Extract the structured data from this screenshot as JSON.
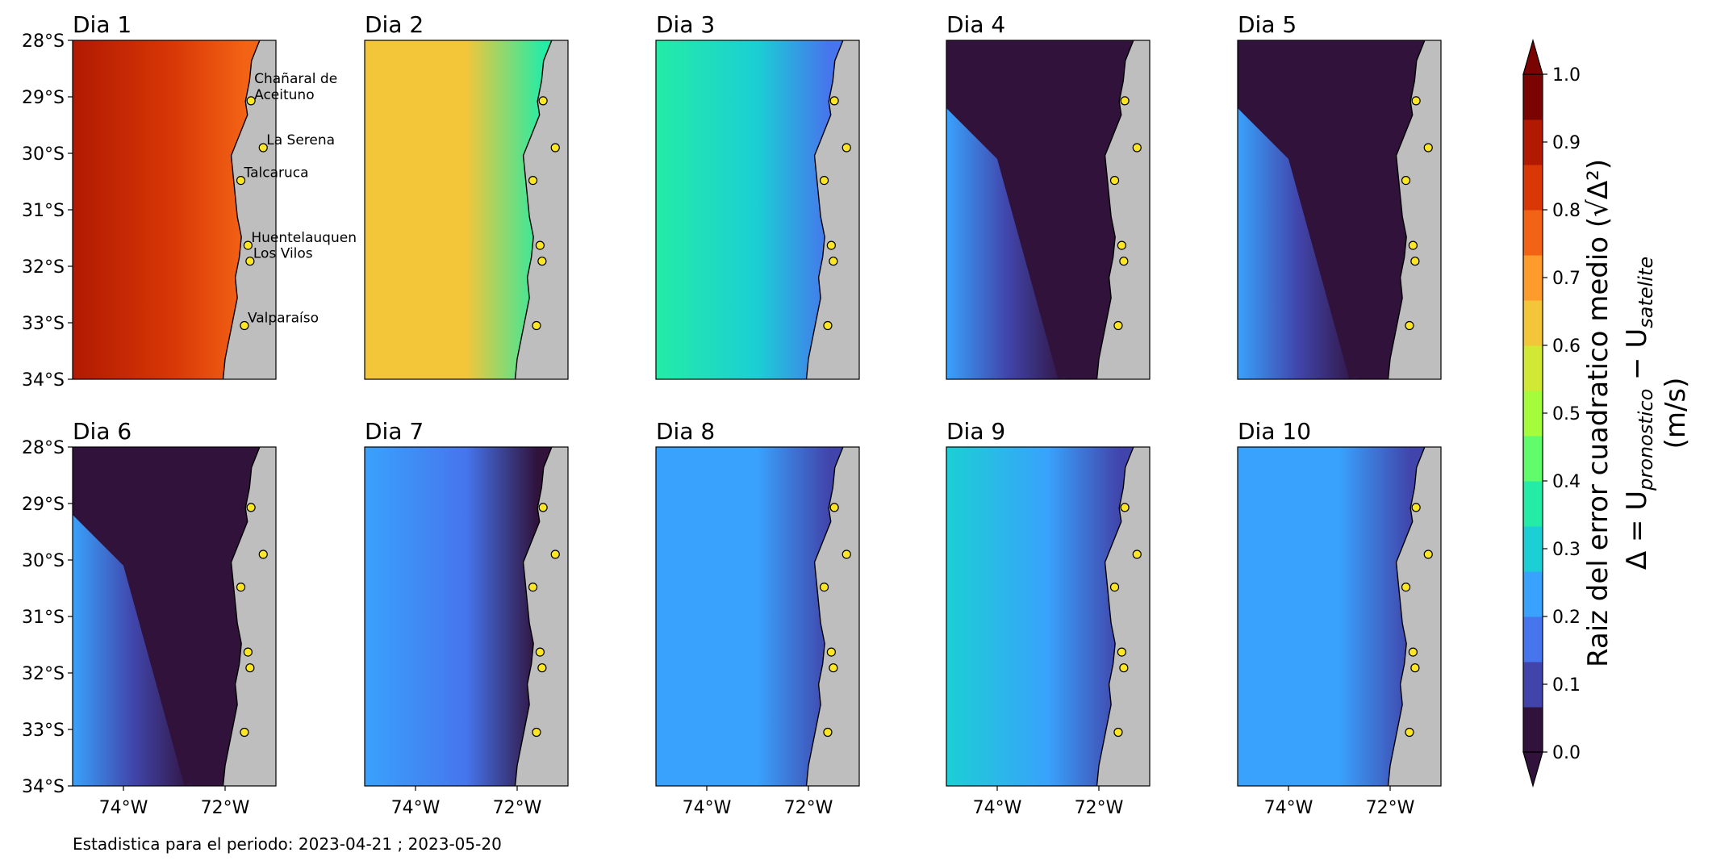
{
  "figure": {
    "footer": "Estadistica para el periodo: 2023-04-21 ; 2023-05-20"
  },
  "panels": [
    {
      "title": "Dia 1",
      "level": "high",
      "base_value": 0.86,
      "show_city_labels": true
    },
    {
      "title": "Dia 2",
      "level": "mid",
      "base_value": 0.6
    },
    {
      "title": "Dia 3",
      "level": "mid-low",
      "base_value": 0.3
    },
    {
      "title": "Dia 4",
      "level": "low",
      "base_value": 0.05
    },
    {
      "title": "Dia 5",
      "level": "low",
      "base_value": 0.05
    },
    {
      "title": "Dia 6",
      "level": "low",
      "base_value": 0.05
    },
    {
      "title": "Dia 7",
      "level": "low-mid",
      "base_value": 0.18
    },
    {
      "title": "Dia 8",
      "level": "low-mid",
      "base_value": 0.2
    },
    {
      "title": "Dia 9",
      "level": "low-mid",
      "base_value": 0.25
    },
    {
      "title": "Dia 10",
      "level": "low-mid",
      "base_value": 0.2
    }
  ],
  "axes": {
    "lat_ticks": [
      "28°S",
      "29°S",
      "30°S",
      "31°S",
      "32°S",
      "33°S",
      "34°S"
    ],
    "lon_ticks": [
      "74°W",
      "72°W"
    ],
    "lat_range": [
      -34,
      -28
    ],
    "lon_range": [
      -75,
      -71
    ]
  },
  "cities": [
    {
      "name": "Chañaral de\nAceituno",
      "lat": -29.07,
      "lon": -71.49
    },
    {
      "name": "La Serena",
      "lat": -29.9,
      "lon": -71.25
    },
    {
      "name": "Talcaruca",
      "lat": -30.48,
      "lon": -71.69
    },
    {
      "name": "Huentelauquen",
      "lat": -31.63,
      "lon": -71.55
    },
    {
      "name": "Los Vilos",
      "lat": -31.91,
      "lon": -71.51
    },
    {
      "name": "Valparaíso",
      "lat": -33.05,
      "lon": -71.62
    }
  ],
  "colorbar": {
    "ticks": [
      "0.0",
      "0.1",
      "0.2",
      "0.3",
      "0.4",
      "0.5",
      "0.6",
      "0.7",
      "0.8",
      "0.9",
      "1.0"
    ],
    "label_line1": "Raiz del error cuadratico medio (√Δ²)",
    "label_line2": "Δ = U",
    "label_sub1": "pronostico",
    "label_minus": " − U",
    "label_sub2": "satelite",
    "label_line3": "(m/s)",
    "colormap": [
      "#30123b",
      "#4145ab",
      "#4675ed",
      "#39a2fc",
      "#1bcfd4",
      "#24eca6",
      "#61fc6c",
      "#a4fc3b",
      "#d1e834",
      "#f3c63a",
      "#fe9b2d",
      "#f36315",
      "#d93806",
      "#b11901",
      "#7a0402"
    ]
  },
  "colors": {
    "land": "#bebebe",
    "city_marker": "#fde725"
  }
}
